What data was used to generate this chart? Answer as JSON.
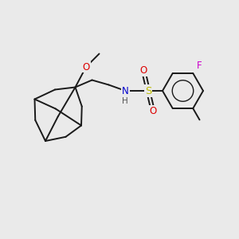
{
  "bg_color": "#eaeaea",
  "bond_color": "#1a1a1a",
  "bond_width": 1.4,
  "atom_colors": {
    "O": "#dd0000",
    "N": "#0000cc",
    "S": "#bbbb00",
    "F": "#cc00cc",
    "H": "#555555",
    "C": "#1a1a1a"
  },
  "fs": 8.5,
  "figsize": [
    3.0,
    3.0
  ],
  "dpi": 100
}
